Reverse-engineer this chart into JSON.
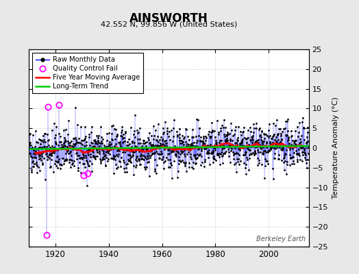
{
  "title": "AINSWORTH",
  "subtitle": "42.552 N, 99.856 W (United States)",
  "ylabel": "Temperature Anomaly (°C)",
  "watermark": "Berkeley Earth",
  "xlim": [
    1910,
    2015
  ],
  "ylim": [
    -25,
    25
  ],
  "yticks": [
    -25,
    -20,
    -15,
    -10,
    -5,
    0,
    5,
    10,
    15,
    20,
    25
  ],
  "xticks": [
    1920,
    1940,
    1960,
    1980,
    2000
  ],
  "start_year": 1910,
  "end_year": 2014,
  "raw_color": "#0000ff",
  "qc_color": "#ff00ff",
  "moving_avg_color": "#ff0000",
  "trend_color": "#00cc00",
  "background_color": "#e8e8e8",
  "plot_bg_color": "#ffffff",
  "grid_color": "#aaaaaa",
  "seed": 42,
  "noise_std": 2.8,
  "qc_fail_years": [
    1917,
    1921,
    1930,
    1932,
    1916
  ],
  "qc_fail_months": [
    3,
    5,
    8,
    2,
    7
  ],
  "qc_fail_values": [
    10.5,
    11.0,
    -7.0,
    -6.5,
    -22.0
  ]
}
